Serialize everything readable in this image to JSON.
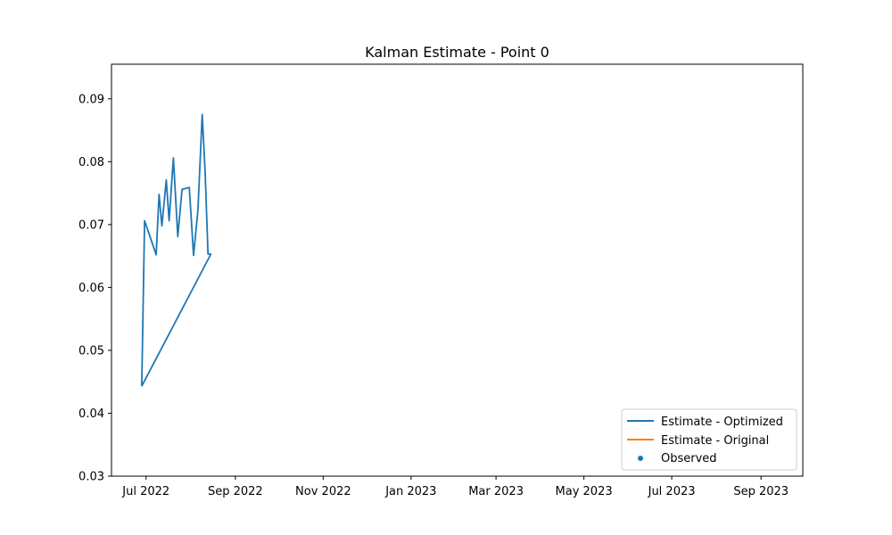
{
  "chart_data": {
    "type": "line",
    "title": "Kalman Estimate - Point 0",
    "xlabel": "",
    "ylabel": "",
    "xlim": [
      "2022-06-07",
      "2023-09-30"
    ],
    "ylim": [
      0.03,
      0.0955
    ],
    "x_ticks": [
      {
        "date": "2022-07-01",
        "label": "Jul 2022"
      },
      {
        "date": "2022-09-01",
        "label": "Sep 2022"
      },
      {
        "date": "2022-11-01",
        "label": "Nov 2022"
      },
      {
        "date": "2023-01-01",
        "label": "Jan 2023"
      },
      {
        "date": "2023-03-01",
        "label": "Mar 2023"
      },
      {
        "date": "2023-05-01",
        "label": "May 2023"
      },
      {
        "date": "2023-07-01",
        "label": "Jul 2023"
      },
      {
        "date": "2023-09-01",
        "label": "Sep 2023"
      }
    ],
    "y_ticks": [
      {
        "value": 0.03,
        "label": "0.03"
      },
      {
        "value": 0.04,
        "label": "0.04"
      },
      {
        "value": 0.05,
        "label": "0.05"
      },
      {
        "value": 0.06,
        "label": "0.06"
      },
      {
        "value": 0.07,
        "label": "0.07"
      },
      {
        "value": 0.08,
        "label": "0.08"
      },
      {
        "value": 0.09,
        "label": "0.09"
      }
    ],
    "grid": false,
    "legend_position": "lower right",
    "series": [
      {
        "name": "Estimate - Optimized",
        "kind": "line",
        "color": "#1f77b4",
        "x": [
          "2022-06-28",
          "2022-06-30",
          "2022-07-08",
          "2022-07-10",
          "2022-07-12",
          "2022-07-15",
          "2022-07-17",
          "2022-07-20",
          "2022-07-23",
          "2022-07-26",
          "2022-07-31",
          "2022-08-03",
          "2022-08-06",
          "2022-08-09",
          "2022-08-11",
          "2022-08-13",
          "2022-08-15",
          "2022-06-28"
        ],
        "y": [
          0.0443,
          0.0706,
          0.0652,
          0.0748,
          0.0698,
          0.0771,
          0.0706,
          0.0806,
          0.0681,
          0.0756,
          0.0759,
          0.0651,
          0.0723,
          0.0875,
          0.0786,
          0.0653,
          0.0653,
          0.0443
        ]
      },
      {
        "name": "Estimate - Original",
        "kind": "line",
        "color": "#ff7f0e",
        "x": [],
        "y": []
      },
      {
        "name": "Observed",
        "kind": "scatter",
        "color": "#1f77b4",
        "x": [],
        "y": []
      }
    ]
  }
}
